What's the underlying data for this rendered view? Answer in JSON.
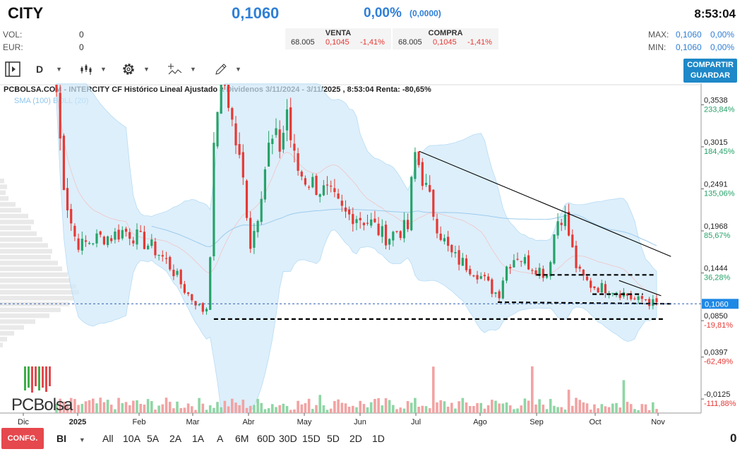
{
  "header": {
    "ticker": "CITY",
    "price": "0,1060",
    "change_pct": "0,00%",
    "change_abs": "(0,0000)",
    "time": "8:53:04",
    "vol_label": "VOL:",
    "vol_value": "0",
    "eur_label": "EUR:",
    "eur_value": "0",
    "max_label": "MAX:",
    "max_value": "0,1060",
    "max_pct": "0,00%",
    "min_label": "MIN:",
    "min_value": "0,1060",
    "min_pct": "0,00%"
  },
  "quotes": {
    "venta": {
      "label": "VENTA",
      "qty": "68.005",
      "price": "0,1045",
      "pct": "-1,41%"
    },
    "compra": {
      "label": "COMPRA",
      "qty": "68.005",
      "price": "0,1045",
      "pct": "-1,41%"
    }
  },
  "toolbar": {
    "interval": "D",
    "share_line1": "COMPARTIR",
    "share_line2": "GUARDAR",
    "icons": [
      "panel-toggle-icon",
      "candlestick-icon",
      "gear-icon",
      "indicators-icon",
      "draw-pencil-icon"
    ]
  },
  "bottom": {
    "config_label": "CONFG.",
    "mode": "BI",
    "periods": [
      "All",
      "10A",
      "5A",
      "2A",
      "1A",
      "A",
      "6M",
      "60D",
      "30D",
      "15D",
      "5D",
      "2D",
      "1D"
    ],
    "right_value": "0"
  },
  "brand": {
    "logo_text": "PCBolsa"
  },
  "colors": {
    "up": "#26a269",
    "down": "#e53935",
    "accent": "#2f7fd6",
    "band": "#cfe8fa",
    "sma": "#9ccbec"
  },
  "chart_data": {
    "type": "candlestick",
    "title": "PCBOLSA.COM - INTERCITY CF Histórico Lineal Ajustado a Dividenos 3/11/2024 - 3/11/2025 , 8:53:04 Renta: -80,65%",
    "legend": "SMA (100) BOLL (20)",
    "x_labels": [
      "Dic",
      "2025",
      "Feb",
      "Mar",
      "Abr",
      "May",
      "Jun",
      "Jul",
      "Ago",
      "Sep",
      "Oct",
      "Nov"
    ],
    "y_ticks": [
      {
        "value": 0.3538,
        "label": "0,3538",
        "pct": "233,84%"
      },
      {
        "value": 0.3015,
        "label": "0,3015",
        "pct": "184,45%"
      },
      {
        "value": 0.2491,
        "label": "0,2491",
        "pct": "135,06%"
      },
      {
        "value": 0.1968,
        "label": "0,1968",
        "pct": "85,67%"
      },
      {
        "value": 0.1444,
        "label": "0,1444",
        "pct": "36,28%"
      },
      {
        "value": 0.106,
        "label": "0,1060",
        "pct": ""
      },
      {
        "value": 0.085,
        "label": "0,0850",
        "pct": "-19,81%"
      },
      {
        "value": 0.0397,
        "label": "0,0397",
        "pct": "-62,49%"
      },
      {
        "value": -0.0125,
        "label": "-0,0125",
        "pct": "-111,88%"
      }
    ],
    "ylim": [
      -0.03,
      0.37
    ],
    "current_price": 0.106,
    "close_series": [
      0.37,
      0.27,
      0.22,
      0.19,
      0.178,
      0.182,
      0.186,
      0.188,
      0.19,
      0.19,
      0.193,
      0.197,
      0.195,
      0.19,
      0.185,
      0.18,
      0.175,
      0.168,
      0.16,
      0.15,
      0.138,
      0.125,
      0.115,
      0.108,
      0.097,
      0.103,
      0.3,
      0.4,
      0.38,
      0.33,
      0.29,
      0.25,
      0.18,
      0.21,
      0.26,
      0.3,
      0.31,
      0.3,
      0.35,
      0.29,
      0.27,
      0.262,
      0.258,
      0.252,
      0.246,
      0.242,
      0.232,
      0.222,
      0.215,
      0.218,
      0.214,
      0.21,
      0.206,
      0.198,
      0.19,
      0.19,
      0.197,
      0.198,
      0.2,
      0.295,
      0.275,
      0.247,
      0.225,
      0.2,
      0.183,
      0.168,
      0.162,
      0.157,
      0.152,
      0.148,
      0.14,
      0.132,
      0.122,
      0.118,
      0.15,
      0.16,
      0.167,
      0.16,
      0.155,
      0.152,
      0.147,
      0.142,
      0.19,
      0.22,
      0.21,
      0.175,
      0.145,
      0.137,
      0.13,
      0.127,
      0.126,
      0.125,
      0.124,
      0.12,
      0.118,
      0.112,
      0.11,
      0.113,
      0.107,
      0.106
    ],
    "trendlines": [
      {
        "style": "solid",
        "from": [
          0.598,
          0.296
        ],
        "to": [
          0.957,
          0.165
        ]
      },
      {
        "style": "solid",
        "from": [
          0.883,
          0.135
        ],
        "to": [
          0.943,
          0.116
        ]
      },
      {
        "style": "dashed",
        "from": [
          0.765,
          0.142
        ],
        "to": [
          0.935,
          0.142
        ]
      },
      {
        "style": "dashed",
        "from": [
          0.845,
          0.118
        ],
        "to": [
          0.917,
          0.118
        ]
      },
      {
        "style": "dashed",
        "from": [
          0.71,
          0.108
        ],
        "to": [
          0.957,
          0.106
        ]
      },
      {
        "style": "dashed",
        "from": [
          0.305,
          0.087
        ],
        "to": [
          0.946,
          0.087
        ]
      }
    ]
  }
}
